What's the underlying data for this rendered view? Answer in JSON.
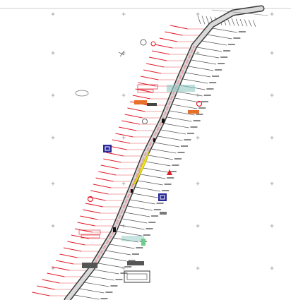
{
  "map": {
    "kind": "highway-corridor-plan",
    "colors": {
      "road_edge": "#3a3a3a",
      "road_fill": "#d9d9d9",
      "centerline": "#e8a0a8",
      "annotation_red": "#e11d2a",
      "highlight_yellow": "#f3e61a",
      "sign_blue": "#2a2a9a",
      "sign_red": "#e11d2a",
      "grid": "#9a9a9a",
      "leader": "#555555",
      "teal_block": "#8fc9c4",
      "orange_block": "#e76f2a"
    },
    "icons": [
      "blue-square-sign-icon",
      "red-triangle-sign-icon",
      "red-circle-sign-icon",
      "north-arrow-icon"
    ]
  }
}
